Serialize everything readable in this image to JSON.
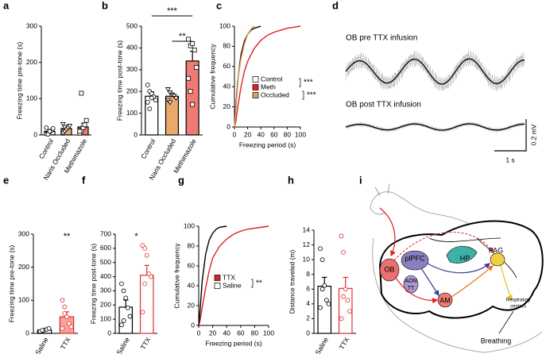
{
  "chart_data": [
    {
      "panel": "a",
      "type": "bar",
      "ylabel": "Freezing time pre-tone (s)",
      "categories": [
        "Control",
        "Naris Occluded",
        "Methimazole"
      ],
      "values": [
        10,
        18,
        22
      ],
      "errors": [
        4,
        6,
        10
      ],
      "fills": [
        "#ffffff",
        "#e8a96b",
        "#f07a74"
      ],
      "edges": [
        "#000000",
        "#000000",
        "#000000"
      ],
      "markers": [
        "circle",
        "triangle",
        "square"
      ],
      "points": [
        [
          3,
          5,
          8,
          12,
          18,
          20,
          2,
          10
        ],
        [
          5,
          10,
          15,
          20,
          25,
          30,
          22
        ],
        [
          5,
          12,
          20,
          28,
          40,
          10,
          115
        ]
      ],
      "ylim": [
        0,
        300
      ],
      "yticks": [
        0,
        100,
        200,
        300
      ]
    },
    {
      "panel": "b",
      "type": "bar",
      "ylabel": "Freezing time post-tone (s)",
      "categories": [
        "Control",
        "Naris Occluded",
        "Methimazole"
      ],
      "values": [
        178,
        178,
        340
      ],
      "errors": [
        20,
        14,
        45
      ],
      "fills": [
        "#ffffff",
        "#e8a96b",
        "#f07a74"
      ],
      "edges": [
        "#000000",
        "#000000",
        "#000000"
      ],
      "markers": [
        "circle",
        "triangle",
        "square"
      ],
      "points": [
        [
          230,
          200,
          190,
          175,
          160,
          150,
          120,
          170
        ],
        [
          210,
          195,
          185,
          180,
          170,
          160,
          150
        ],
        [
          440,
          410,
          420,
          390,
          310,
          260,
          200,
          140
        ]
      ],
      "ylim": [
        0,
        500
      ],
      "yticks": [
        0,
        100,
        200,
        300,
        400,
        500
      ],
      "annotations": [
        "***",
        "**"
      ]
    },
    {
      "panel": "c",
      "type": "cumulative",
      "xlabel": "Freezing period (s)",
      "ylabel": "Cumulative frequency",
      "xlim": [
        0,
        100
      ],
      "xticks": [
        0,
        20,
        40,
        60,
        80,
        100
      ],
      "ylim": [
        0,
        100
      ],
      "yticks": [
        0,
        20,
        40,
        60,
        80,
        100
      ],
      "series": [
        {
          "name": "Control",
          "color": "#000000",
          "x": [
            0,
            2,
            5,
            8,
            10,
            15,
            20,
            25,
            30,
            35,
            40
          ],
          "values": [
            0,
            20,
            45,
            62,
            72,
            85,
            92,
            96,
            98,
            99,
            100
          ]
        },
        {
          "name": "Meth",
          "color": "#e02020",
          "x": [
            0,
            2,
            5,
            10,
            15,
            20,
            30,
            40,
            50,
            60,
            70,
            80,
            90,
            100
          ],
          "values": [
            0,
            5,
            20,
            40,
            55,
            65,
            78,
            86,
            91,
            94,
            96,
            98,
            99,
            100
          ]
        },
        {
          "name": "Occluded",
          "color": "#e0a060",
          "x": [
            0,
            3,
            6,
            10,
            15,
            20,
            25,
            30
          ],
          "values": [
            0,
            25,
            50,
            68,
            82,
            92,
            97,
            100
          ]
        }
      ],
      "annotations": [
        "***",
        "***"
      ]
    },
    {
      "panel": "d",
      "type": "trace",
      "labels": [
        "OB pre TTX infusion",
        "OB post TTX infusion"
      ],
      "scalebar_y": "0.2 mV",
      "scalebar_x": "1 s"
    },
    {
      "panel": "e",
      "type": "bar",
      "ylabel": "Freezing time pre-tone (s)",
      "categories": [
        "Saline",
        "TTX"
      ],
      "values": [
        10,
        50
      ],
      "errors": [
        3,
        15
      ],
      "fills": [
        "#ffffff",
        "#f5a09a"
      ],
      "edges": [
        "#000000",
        "#e03030"
      ],
      "markers": [
        "circle",
        "circle"
      ],
      "points": [
        [
          5,
          8,
          10,
          12,
          15,
          6,
          9
        ],
        [
          100,
          80,
          50,
          30,
          20,
          15,
          60
        ]
      ],
      "ylim": [
        0,
        300
      ],
      "yticks": [
        0,
        100,
        200,
        300
      ],
      "annotations": [
        "**"
      ]
    },
    {
      "panel": "f",
      "type": "bar",
      "ylabel": "Freezing time post-tone (s)",
      "categories": [
        "Saline",
        "TTX"
      ],
      "values": [
        185,
        410
      ],
      "errors": [
        50,
        70
      ],
      "fills": [
        "#ffffff",
        "#ffffff"
      ],
      "edges": [
        "#000000",
        "#e03030"
      ],
      "markers": [
        "circle",
        "circle"
      ],
      "points": [
        [
          350,
          300,
          250,
          180,
          120,
          60,
          90
        ],
        [
          620,
          600,
          550,
          420,
          400,
          150,
          350
        ]
      ],
      "ylim": [
        0,
        700
      ],
      "yticks": [
        0,
        100,
        200,
        300,
        400,
        500,
        600,
        700
      ],
      "annotations": [
        "*"
      ]
    },
    {
      "panel": "g",
      "type": "cumulative",
      "xlabel": "Freezing period (s)",
      "ylabel": "Cumulative frequency",
      "xlim": [
        0,
        100
      ],
      "xticks": [
        0,
        20,
        40,
        60,
        80,
        100
      ],
      "ylim": [
        0,
        100
      ],
      "yticks": [
        0,
        20,
        40,
        60,
        80,
        100
      ],
      "series": [
        {
          "name": "TTX",
          "color": "#e02020",
          "x": [
            0,
            2,
            5,
            10,
            15,
            20,
            30,
            40,
            50,
            60,
            70,
            80,
            90,
            100
          ],
          "values": [
            0,
            5,
            18,
            38,
            55,
            68,
            80,
            87,
            92,
            95,
            97,
            98,
            99,
            100
          ]
        },
        {
          "name": "Saline",
          "color": "#000000",
          "x": [
            0,
            2,
            5,
            10,
            15,
            20,
            25,
            30,
            40
          ],
          "values": [
            0,
            15,
            45,
            72,
            86,
            93,
            97,
            99,
            100
          ]
        }
      ],
      "annotations": [
        "**"
      ]
    },
    {
      "panel": "h",
      "type": "bar",
      "ylabel": "Distance traveled (m)",
      "categories": [
        "Saline",
        "TTX"
      ],
      "values": [
        6.4,
        6.1
      ],
      "errors": [
        1.2,
        1.5
      ],
      "fills": [
        "#ffffff",
        "#ffffff"
      ],
      "edges": [
        "#000000",
        "#e03030"
      ],
      "markers": [
        "circle",
        "circle"
      ],
      "points": [
        [
          11.5,
          10,
          6.5,
          4.5,
          4,
          3.5,
          6
        ],
        [
          13.2,
          11,
          6,
          4.5,
          3,
          2,
          5
        ]
      ],
      "ylim": [
        0,
        14
      ],
      "yticks": [
        0,
        2,
        4,
        6,
        8,
        10,
        12,
        14
      ]
    },
    {
      "panel": "i",
      "type": "diagram",
      "labels": {
        "ob": "OB",
        "plpfc": "plPFC",
        "aon": "AON",
        "tt": "TT",
        "hp": "HP",
        "pag": "PAG",
        "am": "AM",
        "resp1": "Respiratory",
        "resp2": "centers",
        "breathing": "Breathing"
      }
    }
  ]
}
